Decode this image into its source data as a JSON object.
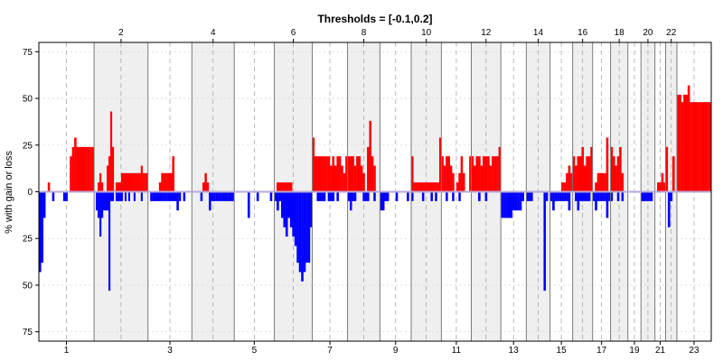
{
  "chart_data": {
    "type": "bar",
    "title": "Thresholds = [-0.1,0.2]",
    "xlabel": "",
    "ylabel": "% with gain or loss",
    "ylim": [
      -80,
      80
    ],
    "yticks": [
      75,
      50,
      25,
      0,
      25,
      50,
      75
    ],
    "ytick_values": [
      75,
      50,
      25,
      0,
      -25,
      -50,
      -75
    ],
    "grid": true,
    "colors": {
      "gain": "#ff0000",
      "loss": "#0000ff",
      "band": "#efefef",
      "zero": "#b8a9d6"
    },
    "chromosomes": [
      {
        "label": "1",
        "size": 249
      },
      {
        "label": "2",
        "size": 243
      },
      {
        "label": "3",
        "size": 198
      },
      {
        "label": "4",
        "size": 191
      },
      {
        "label": "5",
        "size": 181
      },
      {
        "label": "6",
        "size": 171
      },
      {
        "label": "7",
        "size": 159
      },
      {
        "label": "8",
        "size": 146
      },
      {
        "label": "9",
        "size": 141
      },
      {
        "label": "10",
        "size": 136
      },
      {
        "label": "11",
        "size": 135
      },
      {
        "label": "12",
        "size": 133
      },
      {
        "label": "13",
        "size": 115
      },
      {
        "label": "14",
        "size": 107
      },
      {
        "label": "15",
        "size": 102
      },
      {
        "label": "16",
        "size": 90
      },
      {
        "label": "17",
        "size": 81
      },
      {
        "label": "18",
        "size": 78
      },
      {
        "label": "19",
        "size": 59
      },
      {
        "label": "20",
        "size": 63
      },
      {
        "label": "21",
        "size": 48
      },
      {
        "label": "22",
        "size": 51
      },
      {
        "label": "23",
        "size": 155
      }
    ],
    "top_labels": [
      "2",
      "4",
      "6",
      "8",
      "10",
      "12",
      "14",
      "16",
      "18",
      "20",
      "22"
    ],
    "bottom_labels": [
      "1",
      "3",
      "5",
      "7",
      "9",
      "11",
      "13",
      "15",
      "17",
      "19",
      "21",
      "23"
    ],
    "gain_series": [
      [
        0,
        0,
        0,
        0,
        5,
        0,
        0,
        0,
        0,
        0,
        0,
        0,
        0,
        0,
        19,
        24,
        29,
        24,
        24,
        24,
        24,
        24,
        24,
        24,
        24
      ],
      [
        0,
        0,
        5,
        10,
        5,
        0,
        0,
        14,
        19,
        43,
        24,
        0,
        5,
        5,
        5,
        10,
        10,
        10,
        10,
        10,
        10,
        10,
        10,
        10,
        10,
        10,
        14,
        10,
        10,
        10
      ],
      [
        0,
        0,
        0,
        0,
        0,
        5,
        10,
        10,
        10,
        10,
        10,
        19,
        0,
        0,
        0,
        0,
        0,
        0,
        0,
        0
      ],
      [
        0,
        0,
        0,
        0,
        0,
        5,
        10,
        5,
        0,
        0,
        0,
        0,
        0,
        0,
        0,
        0,
        0,
        0,
        0,
        0
      ],
      [
        0,
        0,
        0,
        0,
        0,
        0,
        0,
        0,
        0,
        0,
        0,
        0,
        0,
        0,
        0,
        0,
        0,
        0
      ],
      [
        0,
        5,
        5,
        5,
        5,
        5,
        5,
        5,
        0,
        0,
        0,
        0,
        0,
        0,
        0,
        0,
        0
      ],
      [
        29,
        19,
        19,
        19,
        19,
        19,
        19,
        19,
        14,
        19,
        14,
        19,
        19,
        14,
        10,
        19
      ],
      [
        19,
        19,
        19,
        14,
        19,
        19,
        14,
        10,
        0,
        24,
        38,
        19,
        14,
        0,
        0
      ],
      [
        0,
        0,
        0,
        0,
        0,
        0,
        0,
        0,
        0,
        0,
        0,
        0,
        0,
        0
      ],
      [
        19,
        5,
        5,
        5,
        5,
        5,
        5,
        5,
        5,
        5,
        5,
        5,
        5,
        29
      ],
      [
        19,
        14,
        19,
        19,
        14,
        10,
        0,
        5,
        10,
        19,
        10,
        0,
        0,
        19
      ],
      [
        19,
        14,
        19,
        19,
        14,
        19,
        19,
        19,
        14,
        19,
        19,
        19,
        24
      ],
      [
        0,
        0,
        0,
        0,
        0,
        0,
        0,
        0,
        0,
        0,
        0
      ],
      [
        0,
        0,
        0,
        0,
        0,
        0,
        0,
        0,
        0,
        0,
        0
      ],
      [
        0,
        0,
        0,
        0,
        0,
        5,
        5,
        10,
        14,
        10
      ],
      [
        19,
        14,
        19,
        19,
        24,
        14,
        19,
        19,
        24
      ],
      [
        0,
        5,
        10,
        10,
        10,
        10,
        29,
        0
      ],
      [
        24,
        19,
        14,
        19,
        24,
        10,
        0,
        0
      ],
      [
        0,
        0,
        0,
        0,
        0,
        0
      ],
      [
        0,
        0,
        0,
        0,
        0,
        0
      ],
      [
        0,
        5,
        5,
        10,
        5
      ],
      [
        24,
        0,
        0,
        19,
        0
      ],
      [
        52,
        52,
        48,
        52,
        52,
        57,
        48,
        48,
        48,
        48,
        48,
        48,
        48,
        48,
        48,
        48
      ]
    ],
    "loss_series": [
      [
        43,
        38,
        14,
        0,
        0,
        0,
        5,
        0,
        0,
        0,
        0,
        5,
        5,
        0,
        0,
        0,
        0,
        0,
        0,
        0,
        0,
        0,
        0,
        0,
        0
      ],
      [
        0,
        10,
        14,
        24,
        14,
        10,
        10,
        10,
        53,
        5,
        5,
        0,
        5,
        5,
        5,
        5,
        0,
        5,
        0,
        5,
        0,
        0,
        5,
        0,
        0,
        0,
        5,
        0,
        0,
        0
      ],
      [
        0,
        5,
        5,
        5,
        5,
        5,
        5,
        5,
        5,
        5,
        5,
        5,
        5,
        10,
        5,
        0,
        5,
        0,
        0,
        0
      ],
      [
        0,
        0,
        0,
        0,
        5,
        0,
        0,
        0,
        10,
        5,
        5,
        5,
        5,
        5,
        5,
        5,
        5,
        5,
        5,
        5
      ],
      [
        0,
        0,
        0,
        0,
        0,
        0,
        14,
        0,
        0,
        0,
        5,
        0,
        0,
        0,
        0,
        0,
        5,
        0
      ],
      [
        5,
        10,
        5,
        14,
        19,
        24,
        14,
        19,
        24,
        29,
        38,
        43,
        48,
        43,
        38,
        38,
        19
      ],
      [
        0,
        0,
        5,
        5,
        5,
        5,
        0,
        5,
        5,
        5,
        0,
        5,
        0,
        0,
        0,
        0
      ],
      [
        5,
        10,
        5,
        5,
        0,
        0,
        0,
        5,
        5,
        5,
        0,
        0,
        5,
        0,
        0
      ],
      [
        10,
        10,
        5,
        5,
        0,
        0,
        0,
        5,
        0,
        0,
        0,
        0,
        5,
        0
      ],
      [
        5,
        0,
        0,
        0,
        0,
        5,
        0,
        0,
        0,
        5,
        0,
        5,
        0,
        0
      ],
      [
        0,
        0,
        5,
        0,
        0,
        5,
        0,
        0,
        5,
        0,
        0,
        0,
        0,
        0
      ],
      [
        0,
        0,
        0,
        5,
        0,
        0,
        5,
        0,
        0,
        0,
        0,
        0,
        0
      ],
      [
        14,
        14,
        14,
        14,
        14,
        10,
        10,
        10,
        10,
        5,
        0
      ],
      [
        5,
        5,
        5,
        0,
        0,
        0,
        0,
        0,
        53,
        5,
        0
      ],
      [
        5,
        10,
        5,
        5,
        5,
        5,
        5,
        5,
        10,
        0
      ],
      [
        0,
        5,
        10,
        5,
        5,
        5,
        5,
        5,
        0
      ],
      [
        5,
        10,
        5,
        5,
        5,
        5,
        14,
        5
      ],
      [
        5,
        0,
        0,
        5,
        0,
        5,
        0,
        0
      ],
      [
        0,
        0,
        0,
        0,
        0,
        0
      ],
      [
        5,
        5,
        5,
        5,
        5,
        0
      ],
      [
        0,
        0,
        0,
        0,
        0
      ],
      [
        0,
        19,
        5,
        0,
        0
      ],
      [
        0,
        0,
        0,
        0,
        0,
        0,
        0,
        0,
        0,
        0,
        0,
        0,
        0,
        0,
        0,
        0
      ]
    ]
  }
}
